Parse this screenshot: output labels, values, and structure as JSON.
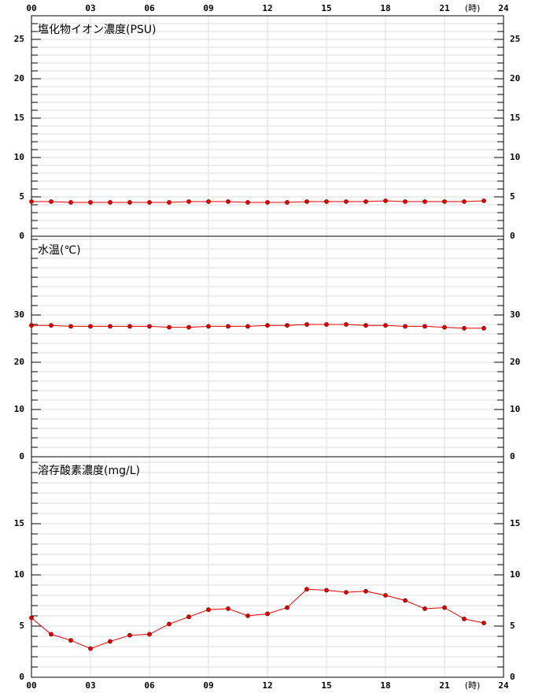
{
  "chart_data": [
    {
      "type": "line",
      "title": "塩化物イオン濃度(PSU)",
      "x_unit": "(時)",
      "x_labels_at": "top",
      "x": [
        0,
        1,
        2,
        3,
        4,
        5,
        6,
        7,
        8,
        9,
        10,
        11,
        12,
        13,
        14,
        15,
        16,
        17,
        18,
        19,
        20,
        21,
        22,
        23
      ],
      "series": [
        {
          "color": "#e00000",
          "values": [
            4.4,
            4.4,
            4.3,
            4.3,
            4.3,
            4.3,
            4.3,
            4.3,
            4.4,
            4.4,
            4.4,
            4.3,
            4.3,
            4.3,
            4.4,
            4.4,
            4.4,
            4.4,
            4.5,
            4.4,
            4.4,
            4.4,
            4.4,
            4.5
          ]
        }
      ],
      "xlim": [
        0,
        24
      ],
      "xticks": [
        {
          "value": 0,
          "label": "00"
        },
        {
          "value": 3,
          "label": "03"
        },
        {
          "value": 6,
          "label": "06"
        },
        {
          "value": 9,
          "label": "09"
        },
        12,
        15,
        18,
        21,
        24
      ],
      "ylim": [
        0,
        28
      ],
      "yticks": [
        0,
        5,
        10,
        15,
        20,
        25
      ],
      "minor_step": 1,
      "grid": true
    },
    {
      "type": "line",
      "title": "水温(℃)",
      "x": [
        0,
        1,
        2,
        3,
        4,
        5,
        6,
        7,
        8,
        9,
        10,
        11,
        12,
        13,
        14,
        15,
        16,
        17,
        18,
        19,
        20,
        21,
        22,
        23
      ],
      "series": [
        {
          "color": "#e00000",
          "values": [
            27.8,
            27.8,
            27.6,
            27.6,
            27.6,
            27.6,
            27.6,
            27.4,
            27.4,
            27.6,
            27.6,
            27.6,
            27.8,
            27.8,
            28.0,
            28.0,
            28.0,
            27.8,
            27.8,
            27.6,
            27.6,
            27.4,
            27.2,
            27.2
          ]
        }
      ],
      "xlim": [
        0,
        24
      ],
      "xticks": [
        0,
        3,
        6,
        9,
        12,
        15,
        18,
        21,
        24
      ],
      "ylim": [
        0,
        46.67
      ],
      "yticks": [
        0,
        10,
        20,
        30
      ],
      "minor_step": 2,
      "grid": true
    },
    {
      "type": "line",
      "title": "溶存酸素濃度(mg/L)",
      "x_unit": "(時)",
      "x_labels_at": "bottom",
      "x": [
        0,
        1,
        2,
        3,
        4,
        5,
        6,
        7,
        8,
        9,
        10,
        11,
        12,
        13,
        14,
        15,
        16,
        17,
        18,
        19,
        20,
        21,
        22,
        23
      ],
      "series": [
        {
          "color": "#e00000",
          "values": [
            5.8,
            4.2,
            3.6,
            2.8,
            3.5,
            4.1,
            4.2,
            5.2,
            5.9,
            6.6,
            6.7,
            6.0,
            6.2,
            6.8,
            8.6,
            8.5,
            8.3,
            8.4,
            8.0,
            7.5,
            6.7,
            6.8,
            5.7,
            5.3
          ]
        }
      ],
      "xlim": [
        0,
        24
      ],
      "xticks": [
        {
          "value": 0,
          "label": "00"
        },
        {
          "value": 3,
          "label": "03"
        },
        {
          "value": 6,
          "label": "06"
        },
        {
          "value": 9,
          "label": "09"
        },
        12,
        15,
        18,
        21,
        24
      ],
      "ylim": [
        0,
        21.54
      ],
      "yticks": [
        0,
        5,
        10,
        15
      ],
      "minor_step": 1,
      "grid": true
    }
  ]
}
